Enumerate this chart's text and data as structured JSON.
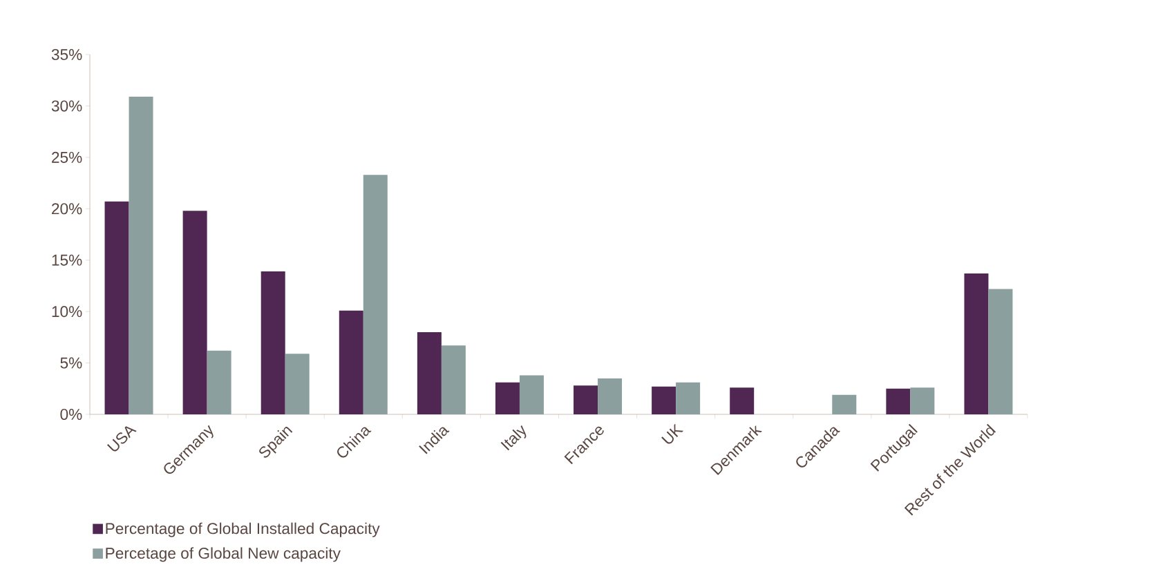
{
  "chart_data": {
    "type": "bar",
    "categories": [
      "USA",
      "Germany",
      "Spain",
      "China",
      "India",
      "Italy",
      "France",
      "UK",
      "Denmark",
      "Canada",
      "Portugal",
      "Rest of the World"
    ],
    "series": [
      {
        "name": "Percentage of Global Installed Capacity",
        "color": "#4f2752",
        "values": [
          20.7,
          19.8,
          13.9,
          10.1,
          8.0,
          3.1,
          2.8,
          2.7,
          2.6,
          null,
          2.5,
          13.7
        ]
      },
      {
        "name": "Percetage of Global New capacity",
        "color": "#8ba09e",
        "values": [
          30.9,
          6.2,
          5.9,
          23.3,
          6.7,
          3.8,
          3.5,
          3.1,
          null,
          1.9,
          2.6,
          12.2
        ]
      }
    ],
    "ylim": [
      0,
      35
    ],
    "yticks": [
      {
        "value": 0,
        "label": "0%"
      },
      {
        "value": 5,
        "label": "5%"
      },
      {
        "value": 10,
        "label": "10%"
      },
      {
        "value": 15,
        "label": "15%"
      },
      {
        "value": 20,
        "label": "20%"
      },
      {
        "value": 25,
        "label": "25%"
      },
      {
        "value": 30,
        "label": "30%"
      },
      {
        "value": 35,
        "label": "35%"
      }
    ],
    "legend": "bottom left"
  }
}
